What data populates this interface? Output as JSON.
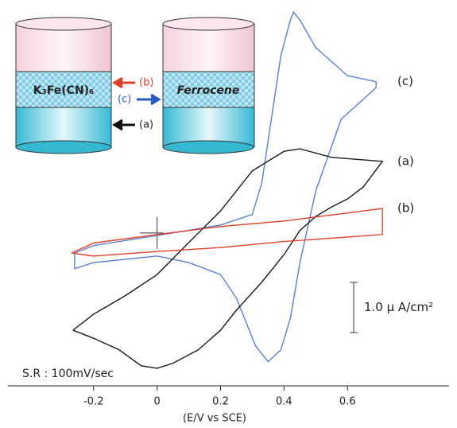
{
  "chart_data": {
    "type": "line",
    "x_label": "(E/V vs SCE)",
    "annotation": "S.R : 100mV/sec",
    "scale_bar": {
      "value": 1,
      "label": "1.0 μ A/cm²"
    },
    "xlim": [
      -0.47,
      0.92
    ],
    "ylim": [
      -3.05,
      4.65
    ],
    "xticks": [
      -0.2,
      0,
      0.2,
      0.4,
      0.6
    ],
    "series": [
      {
        "name": "(c)",
        "color": "#5b7fd0",
        "x": [
          -0.26,
          -0.2,
          0,
          0.2,
          0.3,
          0.33,
          0.36,
          0.39,
          0.42,
          0.43,
          0.45,
          0.5,
          0.6,
          0.69,
          0.69,
          0.58,
          0.5,
          0.45,
          0.42,
          0.39,
          0.35,
          0.31,
          0.25,
          0.2,
          0.1,
          0,
          -0.2,
          -0.26,
          -0.26
        ],
        "values": [
          -0.4,
          -0.25,
          -0.05,
          0.16,
          0.37,
          1.0,
          2.27,
          3.54,
          4.25,
          4.41,
          4.25,
          3.7,
          3.14,
          3.02,
          2.9,
          2.27,
          0.84,
          -0.59,
          -1.7,
          -2.33,
          -2.57,
          -2.25,
          -1.3,
          -0.83,
          -0.59,
          -0.46,
          -0.59,
          -0.71,
          -0.4
        ]
      },
      {
        "name": "(a)",
        "color": "#1a1a1a",
        "x": [
          -0.265,
          -0.2,
          -0.1,
          0,
          0.1,
          0.2,
          0.3,
          0.4,
          0.45,
          0.55,
          0.71,
          0.65,
          0.6,
          0.55,
          0.5,
          0.45,
          0.4,
          0.33,
          0.25,
          0.2,
          0.13,
          0.05,
          0,
          -0.05,
          -0.12,
          -0.2,
          -0.265
        ],
        "values": [
          -1.94,
          -1.62,
          -1.25,
          -0.83,
          -0.19,
          0.44,
          1.24,
          1.63,
          1.68,
          1.51,
          1.43,
          0.92,
          0.68,
          0.52,
          0.33,
          0.05,
          -0.43,
          -0.98,
          -1.54,
          -1.94,
          -2.33,
          -2.6,
          -2.7,
          -2.65,
          -2.33,
          -2.1,
          -1.94
        ]
      },
      {
        "name": "(b)",
        "color": "#e0402a",
        "x": [
          -0.27,
          -0.2,
          0,
          0.2,
          0.4,
          0.6,
          0.71,
          0.71,
          0.6,
          0.4,
          0.2,
          0,
          -0.2,
          -0.27
        ],
        "values": [
          -0.4,
          -0.2,
          -0.03,
          0.13,
          0.24,
          0.4,
          0.49,
          -0.03,
          -0.08,
          -0.17,
          -0.29,
          -0.37,
          -0.46,
          -0.4
        ]
      }
    ]
  },
  "inset": {
    "left_label": "K₃Fe(CN)₆",
    "right_label": "Ferrocene",
    "arrows": [
      {
        "label": "(b)"
      },
      {
        "label": "(c)"
      },
      {
        "label": "(a)"
      }
    ]
  }
}
